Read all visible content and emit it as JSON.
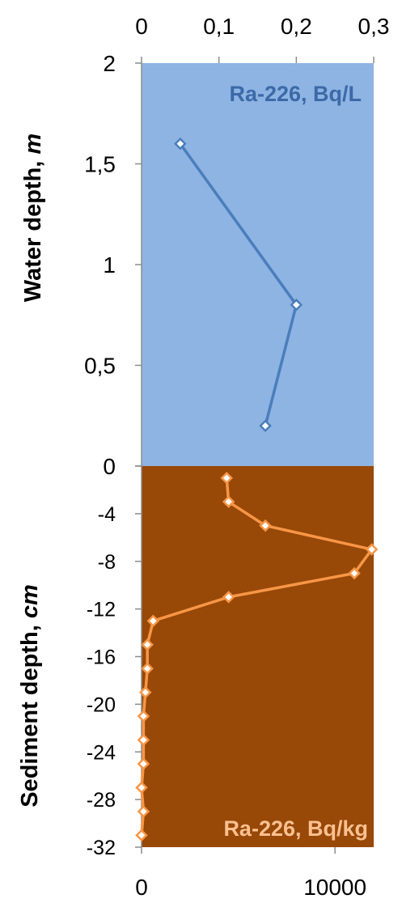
{
  "chart_data": [
    {
      "type": "line",
      "panel": "water",
      "series_label": "Ra-226, Bq/L",
      "ylabel": "Water depth, ",
      "ylabel_unit": "m",
      "xlim": [
        0,
        0.3
      ],
      "ylim": [
        0,
        2
      ],
      "x_ticks": [
        "0",
        "0,1",
        "0,2",
        "0,3"
      ],
      "y_ticks": [
        "0",
        "0,5",
        "1",
        "1,5",
        "2"
      ],
      "points": [
        {
          "x": 0.05,
          "y": 1.6
        },
        {
          "x": 0.2,
          "y": 0.8
        },
        {
          "x": 0.16,
          "y": 0.2
        }
      ],
      "colors": {
        "background": "#8EB4E3",
        "line": "#4A7EBB",
        "label": "#3C6AA8"
      }
    },
    {
      "type": "line",
      "panel": "sediment",
      "series_label": "Ra-226, Bq/kg",
      "ylabel": "Sediment depth, ",
      "ylabel_unit": "cm",
      "xlim": [
        0,
        12000
      ],
      "ylim": [
        -32,
        0
      ],
      "x_ticks": [
        "0",
        "10000"
      ],
      "y_ticks": [
        "0",
        "-4",
        "-8",
        "-12",
        "-16",
        "-20",
        "-24",
        "-28",
        "-32"
      ],
      "points": [
        {
          "x": 4400,
          "y": -1
        },
        {
          "x": 4500,
          "y": -3
        },
        {
          "x": 6400,
          "y": -5
        },
        {
          "x": 11900,
          "y": -7
        },
        {
          "x": 11000,
          "y": -9
        },
        {
          "x": 4500,
          "y": -11
        },
        {
          "x": 600,
          "y": -13
        },
        {
          "x": 300,
          "y": -15
        },
        {
          "x": 300,
          "y": -17
        },
        {
          "x": 200,
          "y": -19
        },
        {
          "x": 100,
          "y": -21
        },
        {
          "x": 100,
          "y": -23
        },
        {
          "x": 100,
          "y": -25
        },
        {
          "x": 0,
          "y": -27
        },
        {
          "x": 100,
          "y": -29
        },
        {
          "x": 0,
          "y": -31
        }
      ],
      "colors": {
        "background": "#984807",
        "line": "#F79646",
        "label": "#FAC090"
      }
    }
  ]
}
